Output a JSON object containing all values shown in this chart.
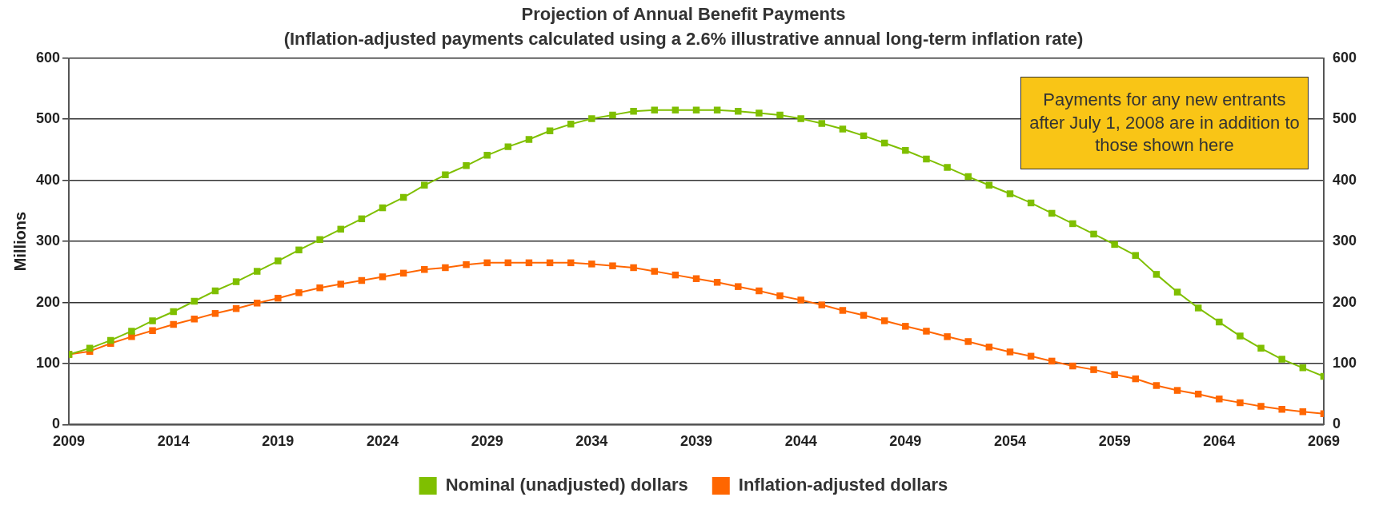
{
  "chart_data": {
    "type": "line",
    "title": "Projection of Annual Benefit Payments",
    "subtitle": "(Inflation-adjusted payments calculated using a 2.6% illustrative annual long-term inflation rate)",
    "ylabel": "Millions",
    "x": [
      2009,
      2010,
      2011,
      2012,
      2013,
      2014,
      2015,
      2016,
      2017,
      2018,
      2019,
      2020,
      2021,
      2022,
      2023,
      2024,
      2025,
      2026,
      2027,
      2028,
      2029,
      2030,
      2031,
      2032,
      2033,
      2034,
      2035,
      2036,
      2037,
      2038,
      2039,
      2040,
      2041,
      2042,
      2043,
      2044,
      2045,
      2046,
      2047,
      2048,
      2049,
      2050,
      2051,
      2052,
      2053,
      2054,
      2055,
      2056,
      2057,
      2058,
      2059,
      2060,
      2061,
      2062,
      2063,
      2064,
      2065,
      2066,
      2067,
      2068,
      2069
    ],
    "series": [
      {
        "name": "Nominal (unadjusted) dollars",
        "color": "#7fbf00",
        "values": [
          115,
          125,
          138,
          153,
          170,
          185,
          202,
          219,
          234,
          251,
          268,
          286,
          303,
          320,
          337,
          355,
          372,
          392,
          409,
          424,
          441,
          455,
          467,
          481,
          492,
          501,
          507,
          513,
          515,
          515,
          515,
          515,
          513,
          510,
          507,
          501,
          493,
          484,
          473,
          461,
          449,
          435,
          421,
          406,
          392,
          378,
          363,
          346,
          329,
          312,
          295,
          277,
          246,
          217,
          191,
          168,
          145,
          125,
          107,
          93,
          79
        ]
      },
      {
        "name": "Inflation-adjusted dollars",
        "color": "#ff6600",
        "values": [
          115,
          120,
          133,
          144,
          154,
          164,
          173,
          182,
          190,
          199,
          207,
          216,
          224,
          230,
          236,
          242,
          248,
          254,
          257,
          262,
          265,
          265,
          265,
          265,
          265,
          263,
          260,
          257,
          251,
          245,
          239,
          233,
          226,
          219,
          211,
          204,
          196,
          187,
          179,
          170,
          161,
          153,
          144,
          136,
          127,
          119,
          112,
          104,
          96,
          90,
          82,
          75,
          64,
          56,
          50,
          42,
          36,
          30,
          25,
          21,
          18
        ]
      }
    ],
    "xlim": [
      2009,
      2069
    ],
    "xticks": [
      2009,
      2014,
      2019,
      2024,
      2029,
      2034,
      2039,
      2044,
      2049,
      2054,
      2059,
      2064,
      2069
    ],
    "ylim": [
      0,
      600
    ],
    "yticks": [
      0,
      100,
      200,
      300,
      400,
      500,
      600
    ],
    "y2lim": [
      0,
      600
    ],
    "y2ticks": [
      0,
      100,
      200,
      300,
      400,
      500,
      600
    ],
    "grid": "y",
    "legend": "bottom",
    "marker": "square",
    "line_style": "solid",
    "annotations": [
      "Payments for any new entrants after July 1, 2008 are in addition to those shown here"
    ]
  }
}
